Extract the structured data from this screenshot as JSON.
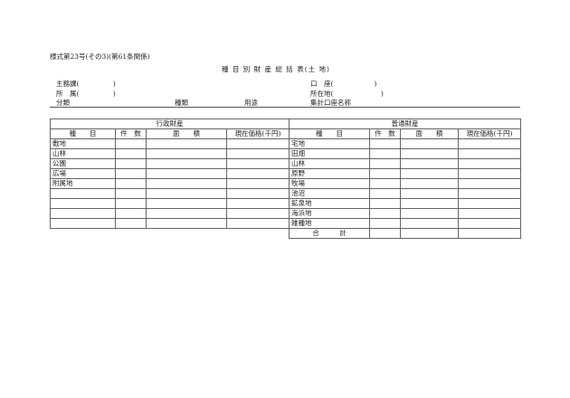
{
  "form_number": "様式第23号(その3)(第61条関係)",
  "title": "種 目 別 財 産 総 括 表(土 地)",
  "left_fields": [
    "主務課(　　　　　)",
    "所　属(　　　　　)"
  ],
  "classification": {
    "bunrui": "分類",
    "shurui": "種類",
    "youto": "用途"
  },
  "right_fields": [
    "口　座(　　　　　　)",
    "所在地(　　　　　　　)",
    "集計口座名称"
  ],
  "gyosei": {
    "heading": "行政財産",
    "columns": [
      "種　　目",
      "件　数",
      "面　　積",
      "現在価格(千円)"
    ],
    "rows": [
      "敷地",
      "山林",
      "公園",
      "広場",
      "附属地",
      "",
      "",
      "",
      ""
    ]
  },
  "futsu": {
    "heading": "普通財産",
    "columns": [
      "種　　目",
      "件　数",
      "面　　積",
      "現在価格(千円)"
    ],
    "rows": [
      "宅地",
      "田畑",
      "山林",
      "原野",
      "牧場",
      "池沼",
      "鉱泉地",
      "海浜地",
      "雑種地"
    ],
    "total_label": "合　　　計"
  }
}
